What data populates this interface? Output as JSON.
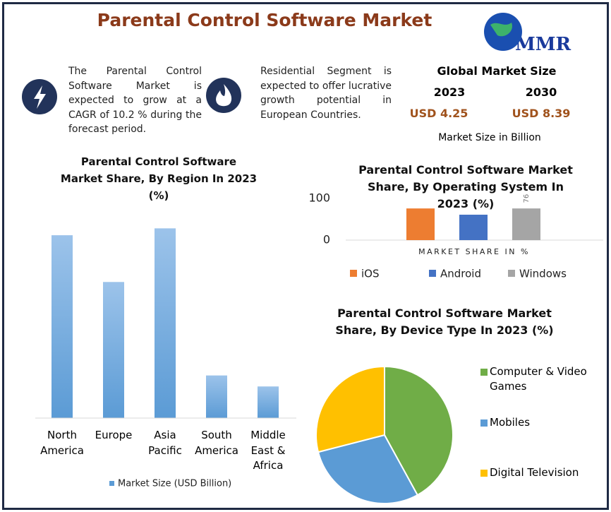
{
  "header": {
    "title": "Parental Control Software Market",
    "logo": "MMR"
  },
  "highlights": [
    "The Parental Control Software Market is expected to grow at a CAGR of 10.2 % during the forecast period.",
    "Residential Segment is expected to offer lucrative growth potential in European Countries."
  ],
  "market_size": {
    "title": "Global Market Size",
    "years": [
      "2023",
      "2030"
    ],
    "values": [
      "USD 4.25",
      "USD 8.39"
    ],
    "note": "Market Size in Billion"
  },
  "chart_data": [
    {
      "type": "bar",
      "title": "Parental Control Software Market Share, By Region In 2023 (%)",
      "categories": [
        "North America",
        "Europe",
        "Asia Pacific",
        "South America",
        "Middle East & Africa"
      ],
      "series": [
        {
          "name": "Market Size (USD Billion)",
          "color": "#5b9bd5",
          "values": [
            1.33,
            0.99,
            1.38,
            0.31,
            0.23
          ]
        }
      ],
      "ylim": [
        0,
        1.5
      ]
    },
    {
      "type": "bar",
      "title": "Parental Control Software Market Share, By Operating System In 2023 (%)",
      "x_label": "MARKET SHARE IN %",
      "categories": [
        "iOS",
        "Android",
        "Windows"
      ],
      "colors": [
        "#ed7d31",
        "#4472c4",
        "#a5a5a5"
      ],
      "values": [
        76,
        61,
        76
      ],
      "ylim": [
        0,
        100
      ],
      "yticks": [
        0,
        100
      ]
    },
    {
      "type": "pie",
      "title": "Parental Control Software Market Share, By Device Type In 2023 (%)",
      "categories": [
        "Computer & Video Games",
        "Mobiles",
        "Digital Television"
      ],
      "colors": [
        "#70ad47",
        "#5b9bd5",
        "#ffc000"
      ],
      "values": [
        42,
        29,
        29
      ]
    }
  ]
}
